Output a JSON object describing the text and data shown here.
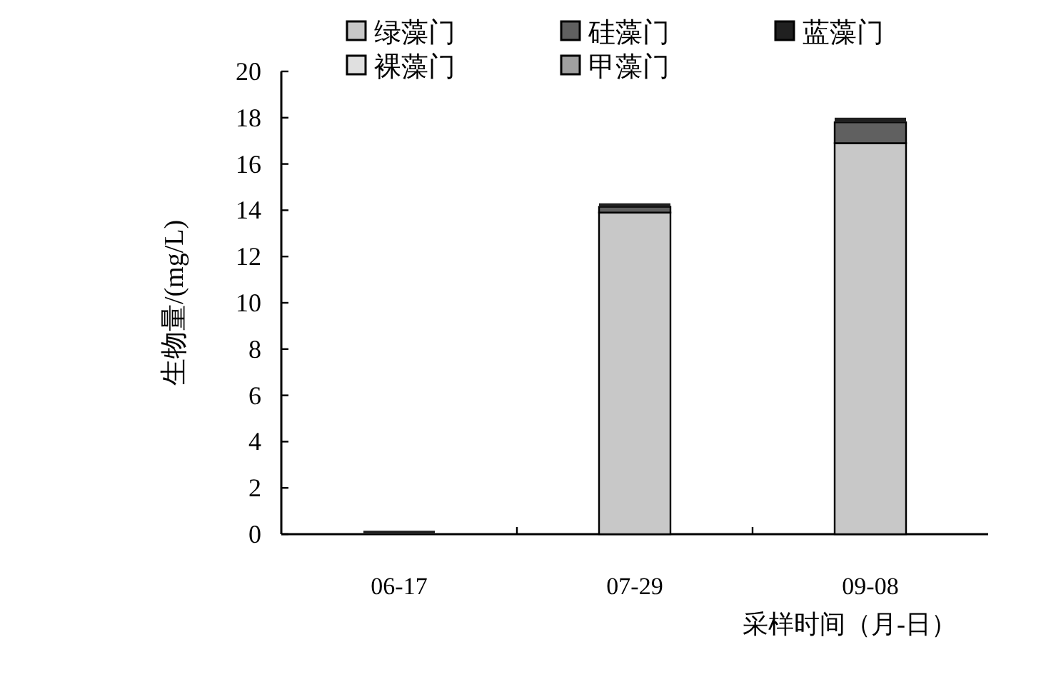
{
  "chart_data": {
    "type": "bar",
    "stacked": true,
    "ylabel": "生物量/(mg/L)",
    "xlabel": "采样时间（月-日）",
    "categories": [
      "06-17",
      "07-29",
      "09-08"
    ],
    "series": [
      {
        "name": "绿藻门",
        "color": "#c8c8c8",
        "values": [
          0,
          13.9,
          16.9
        ]
      },
      {
        "name": "硅藻门",
        "color": "#606060",
        "values": [
          0,
          0.25,
          0.9
        ]
      },
      {
        "name": "蓝藻门",
        "color": "#202020",
        "values": [
          0.15,
          0.15,
          0.2
        ]
      },
      {
        "name": "裸藻门",
        "color": "#e0e0e0",
        "values": [
          0,
          0,
          0
        ]
      },
      {
        "name": "甲藻门",
        "color": "#a0a0a0",
        "values": [
          0,
          0,
          0
        ]
      }
    ],
    "ylim": [
      0,
      20
    ],
    "yticks": [
      0,
      2,
      4,
      6,
      8,
      10,
      12,
      14,
      16,
      18,
      20
    ],
    "grid": false,
    "legend": "top"
  }
}
